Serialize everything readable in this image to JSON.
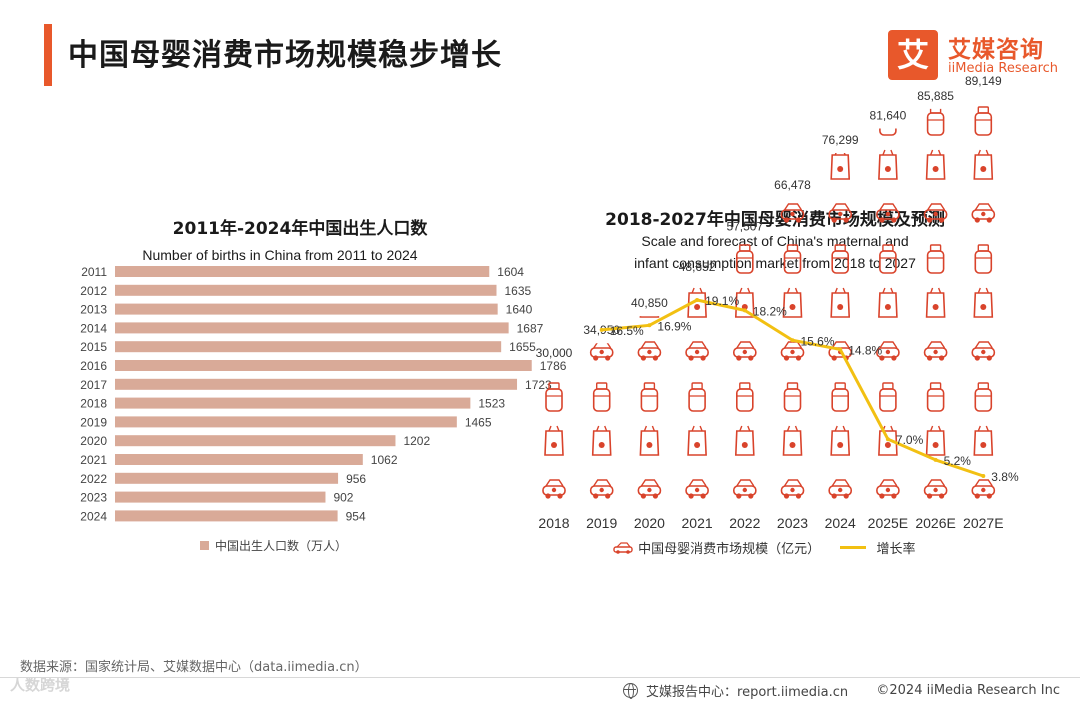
{
  "header": {
    "title": "中国母婴消费市场规模稳步增长",
    "brand_mark": "艾",
    "brand_cn": "艾媒咨询",
    "brand_en": "iiMedia Research"
  },
  "left": {
    "title_cn": "2011年-2024年中国出生人口数",
    "subtitle_en": "Number of births in China from 2011 to 2024",
    "legend": "中国出生人口数（万人）"
  },
  "right": {
    "title_cn": "2018-2027年中国母婴消费市场规模及预测",
    "subtitle_en_1": "Scale and forecast of China's maternal and",
    "subtitle_en_2": "infant consumption market from 2018 to 2027",
    "legend_bar": "中国母婴消费市场规模（亿元）",
    "legend_line": "增长率"
  },
  "colors": {
    "accent": "#e8582b",
    "bar": "#d9aa98",
    "icon_red": "#d9432b",
    "line": "#f2c012",
    "text": "#1a1a1a"
  },
  "chart_data": [
    {
      "type": "bar",
      "orientation": "horizontal",
      "title": "2011年-2024年中国出生人口数",
      "subtitle": "Number of births in China from 2011 to 2024",
      "categories": [
        "2011",
        "2012",
        "2013",
        "2014",
        "2015",
        "2016",
        "2017",
        "2018",
        "2019",
        "2020",
        "2021",
        "2022",
        "2023",
        "2024"
      ],
      "series": [
        {
          "name": "中国出生人口数（万人）",
          "values": [
            1604,
            1635,
            1640,
            1687,
            1655,
            1786,
            1723,
            1523,
            1465,
            1202,
            1062,
            956,
            902,
            954
          ]
        }
      ],
      "xlim": [
        0,
        1800
      ],
      "legend_position": "bottom",
      "grid": false
    },
    {
      "type": "bar",
      "title": "2018-2027年中国母婴消费市场规模及预测",
      "subtitle": "Scale and forecast of China's maternal and infant consumption market from 2018 to 2027",
      "categories": [
        "2018",
        "2019",
        "2020",
        "2021",
        "2022",
        "2023",
        "2024",
        "2025E",
        "2026E",
        "2027E"
      ],
      "series": [
        {
          "name": "中国母婴消费市场规模（亿元）",
          "type": "bar",
          "values": [
            30000,
            34950,
            40850,
            48652,
            57507,
            66478,
            76299,
            81640,
            85885,
            89149
          ]
        },
        {
          "name": "增长率",
          "type": "line",
          "unit": "%",
          "values": [
            null,
            16.5,
            16.9,
            19.1,
            18.2,
            15.6,
            14.8,
            7.0,
            5.2,
            3.8
          ]
        }
      ],
      "ylim": [
        0,
        100000
      ],
      "legend_position": "bottom",
      "grid": false
    }
  ],
  "footer": {
    "source": "数据来源：国家统计局、艾媒数据中心（data.iimedia.cn）",
    "watermark": "人数跨境",
    "report": "艾媒报告中心：report.iimedia.cn",
    "copyright": "©2024  iiMedia Research  Inc"
  }
}
